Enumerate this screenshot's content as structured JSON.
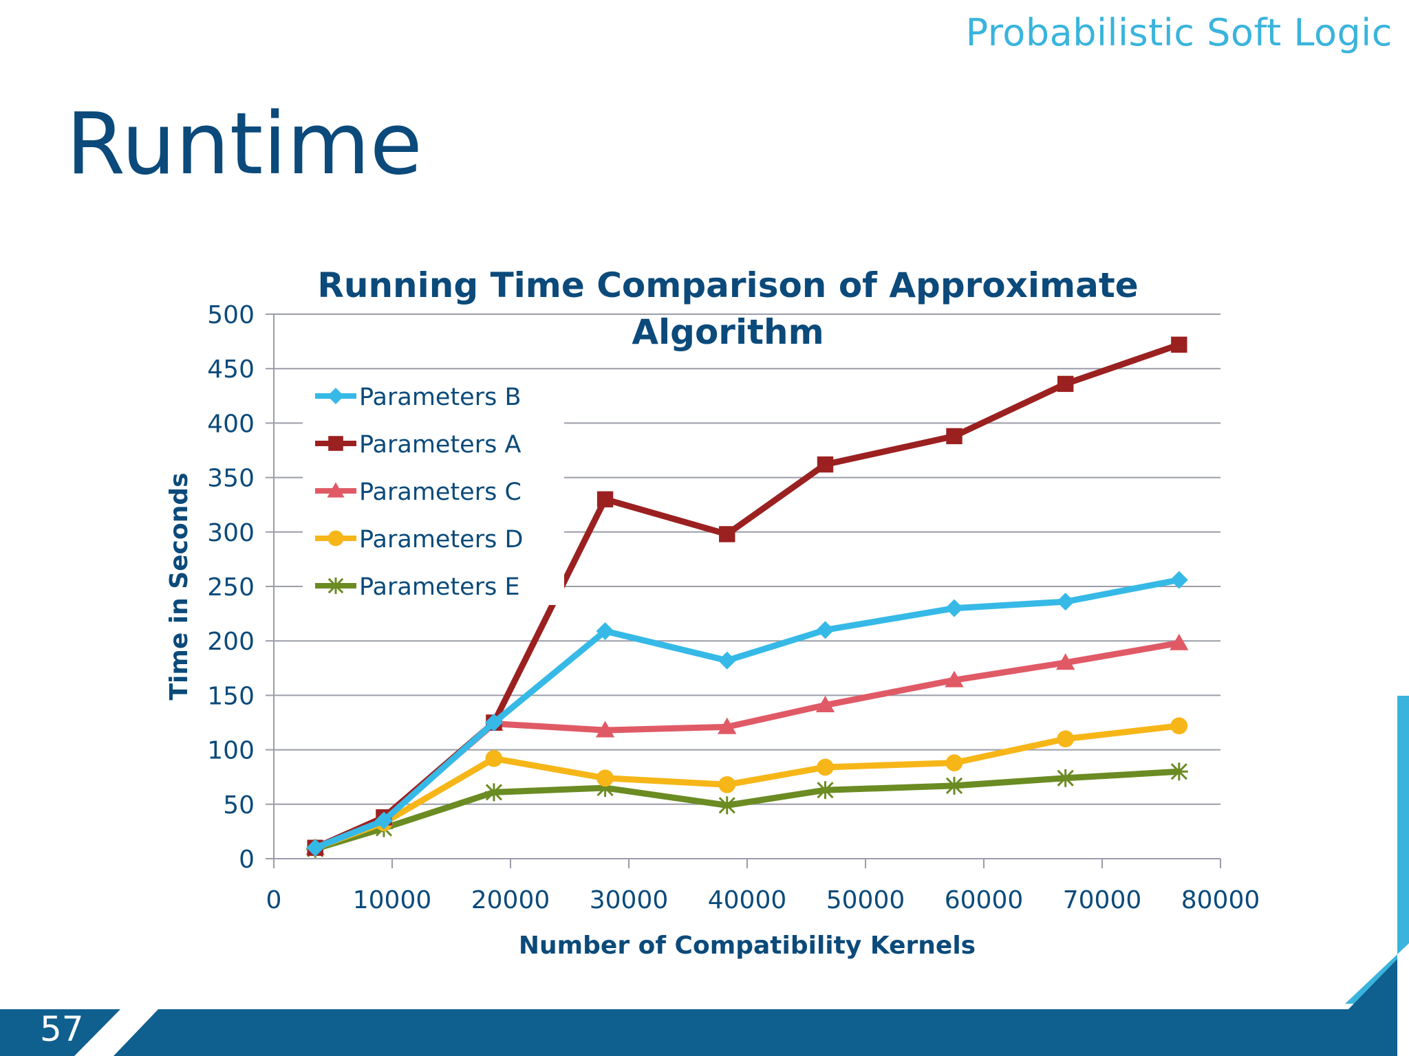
{
  "header": {
    "brand": "Probabilistic Soft Logic"
  },
  "slide": {
    "title": "Runtime",
    "page_number": "57"
  },
  "colors": {
    "title": "#0b4a7a",
    "brand": "#3ab4dc",
    "footer_dark": "#0f5f8f",
    "footer_light": "#3ab4dc"
  },
  "chart_data": {
    "type": "line",
    "title": "Running Time Comparison of Approximate Algorithm",
    "title_lines": [
      "Running Time Comparison of Approximate",
      "Algorithm"
    ],
    "xlabel": "Number of Compatibility Kernels",
    "ylabel": "Time in Seconds",
    "xlim": [
      0,
      80000
    ],
    "ylim": [
      0,
      500
    ],
    "xticks": [
      0,
      10000,
      20000,
      30000,
      40000,
      50000,
      60000,
      70000,
      80000
    ],
    "yticks": [
      0,
      50,
      100,
      150,
      200,
      250,
      300,
      350,
      400,
      450,
      500
    ],
    "grid": true,
    "legend_position": "top-left",
    "x": [
      3500,
      9300,
      18600,
      28000,
      38300,
      46600,
      57500,
      66900,
      76500
    ],
    "series": [
      {
        "name": "Parameters B",
        "color": "#36b9e6",
        "marker": "diamond",
        "values": [
          10,
          35,
          125,
          209,
          182,
          210,
          230,
          236,
          256
        ]
      },
      {
        "name": "Parameters A",
        "color": "#9b2020",
        "marker": "square",
        "values": [
          10,
          38,
          125,
          330,
          298,
          362,
          388,
          436,
          472
        ]
      },
      {
        "name": "Parameters C",
        "color": "#e05a66",
        "marker": "triangle",
        "values": [
          10,
          37,
          124,
          118,
          121,
          141,
          164,
          180,
          198
        ]
      },
      {
        "name": "Parameters D",
        "color": "#f6b618",
        "marker": "circle",
        "values": [
          10,
          33,
          92,
          74,
          68,
          84,
          88,
          110,
          122
        ]
      },
      {
        "name": "Parameters E",
        "color": "#6b8b23",
        "marker": "star",
        "values": [
          9,
          28,
          61,
          65,
          49,
          63,
          67,
          74,
          80
        ]
      }
    ]
  }
}
